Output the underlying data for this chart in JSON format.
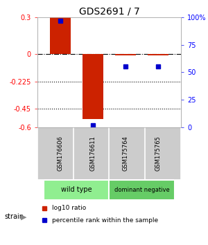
{
  "title": "GDS2691 / 7",
  "samples": [
    "GSM176606",
    "GSM176611",
    "GSM175764",
    "GSM175765"
  ],
  "log10_ratio": [
    0.3,
    -0.53,
    -0.01,
    -0.01
  ],
  "percentile_rank": [
    97,
    2,
    55,
    55
  ],
  "ylim_left": [
    -0.6,
    0.3
  ],
  "ylim_right": [
    0,
    100
  ],
  "yticks_left": [
    0.3,
    0,
    -0.225,
    -0.45,
    -0.6
  ],
  "ytick_labels_left": [
    "0.3",
    "0",
    "-0.225",
    "-0.45",
    "-0.6"
  ],
  "yticks_right": [
    100,
    75,
    50,
    25,
    0
  ],
  "ytick_labels_right": [
    "100%",
    "75",
    "50",
    "25",
    "0"
  ],
  "hlines_dotted": [
    -0.225,
    -0.45
  ],
  "hline_dashdot": 0,
  "groups": [
    {
      "label": "wild type",
      "start": 0,
      "end": 2,
      "color": "#90EE90"
    },
    {
      "label": "dominant negative",
      "start": 2,
      "end": 4,
      "color": "#66CC66"
    }
  ],
  "bar_color": "#CC2200",
  "marker_color": "#0000CC",
  "bar_width": 0.65,
  "legend_labels": [
    "log10 ratio",
    "percentile rank within the sample"
  ],
  "strain_label": "strain",
  "background_color": "#ffffff",
  "sample_bg_color": "#cccccc",
  "group_border_color": "#ffffff"
}
